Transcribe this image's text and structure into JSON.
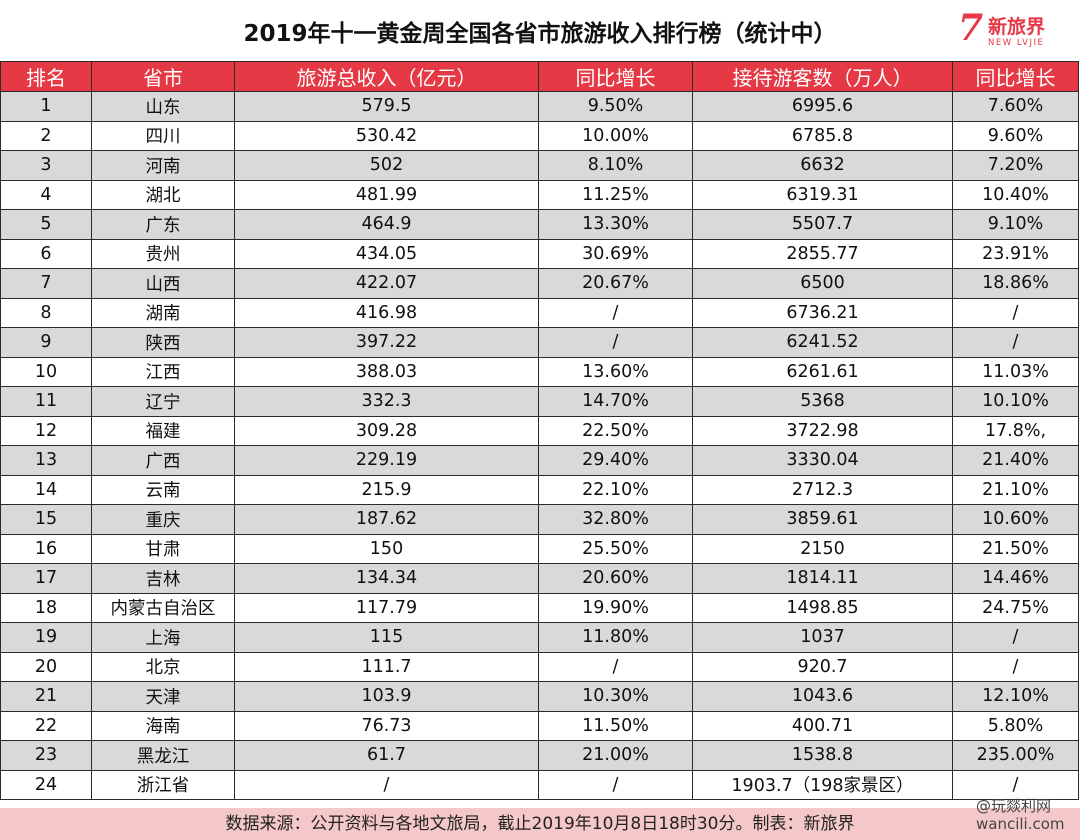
{
  "title": "2019年十一黄金周全国各省市旅游收入排行榜（统计中）",
  "logo": {
    "mark": "7",
    "name_cn": "新旅界",
    "name_en": "NEW LVJIE"
  },
  "colors": {
    "header_bg": "#e53946",
    "row_shade": "#d9d9d9",
    "footer_bg": "#f4c7c9"
  },
  "table": {
    "headers": [
      "排名",
      "省市",
      "旅游总收入（亿元）",
      "同比增长",
      "接待游客数（万人）",
      "同比增长"
    ],
    "rows": [
      [
        "1",
        "山东",
        "579.5",
        "9.50%",
        "6995.6",
        "7.60%"
      ],
      [
        "2",
        "四川",
        "530.42",
        "10.00%",
        "6785.8",
        "9.60%"
      ],
      [
        "3",
        "河南",
        "502",
        "8.10%",
        "6632",
        "7.20%"
      ],
      [
        "4",
        "湖北",
        "481.99",
        "11.25%",
        "6319.31",
        "10.40%"
      ],
      [
        "5",
        "广东",
        "464.9",
        "13.30%",
        "5507.7",
        "9.10%"
      ],
      [
        "6",
        "贵州",
        "434.05",
        "30.69%",
        "2855.77",
        "23.91%"
      ],
      [
        "7",
        "山西",
        "422.07",
        "20.67%",
        "6500",
        "18.86%"
      ],
      [
        "8",
        "湖南",
        "416.98",
        "/",
        "6736.21",
        "/"
      ],
      [
        "9",
        "陕西",
        "397.22",
        "/",
        "6241.52",
        "/"
      ],
      [
        "10",
        "江西",
        "388.03",
        "13.60%",
        "6261.61",
        "11.03%"
      ],
      [
        "11",
        "辽宁",
        "332.3",
        "14.70%",
        "5368",
        "10.10%"
      ],
      [
        "12",
        "福建",
        "309.28",
        "22.50%",
        "3722.98",
        "17.8%,"
      ],
      [
        "13",
        "广西",
        "229.19",
        "29.40%",
        "3330.04",
        "21.40%"
      ],
      [
        "14",
        "云南",
        "215.9",
        "22.10%",
        "2712.3",
        "21.10%"
      ],
      [
        "15",
        "重庆",
        "187.62",
        "32.80%",
        "3859.61",
        "10.60%"
      ],
      [
        "16",
        "甘肃",
        "150",
        "25.50%",
        "2150",
        "21.50%"
      ],
      [
        "17",
        "吉林",
        "134.34",
        "20.60%",
        "1814.11",
        "14.46%"
      ],
      [
        "18",
        "内蒙古自治区",
        "117.79",
        "19.90%",
        "1498.85",
        "24.75%"
      ],
      [
        "19",
        "上海",
        "115",
        "11.80%",
        "1037",
        "/"
      ],
      [
        "20",
        "北京",
        "111.7",
        "/",
        "920.7",
        "/"
      ],
      [
        "21",
        "天津",
        "103.9",
        "10.30%",
        "1043.6",
        "12.10%"
      ],
      [
        "22",
        "海南",
        "76.73",
        "11.50%",
        "400.71",
        "5.80%"
      ],
      [
        "23",
        "黑龙江",
        "61.7",
        "21.00%",
        "1538.8",
        "235.00%"
      ],
      [
        "24",
        "浙江省",
        "/",
        "/",
        "1903.7（198家景区）",
        "/"
      ]
    ]
  },
  "footer": "数据来源：公开资料与各地文旅局，截止2019年10月8日18时30分。制表：新旅界",
  "watermark": {
    "line1": "@玩燚利网",
    "line2": "wancili.com"
  }
}
